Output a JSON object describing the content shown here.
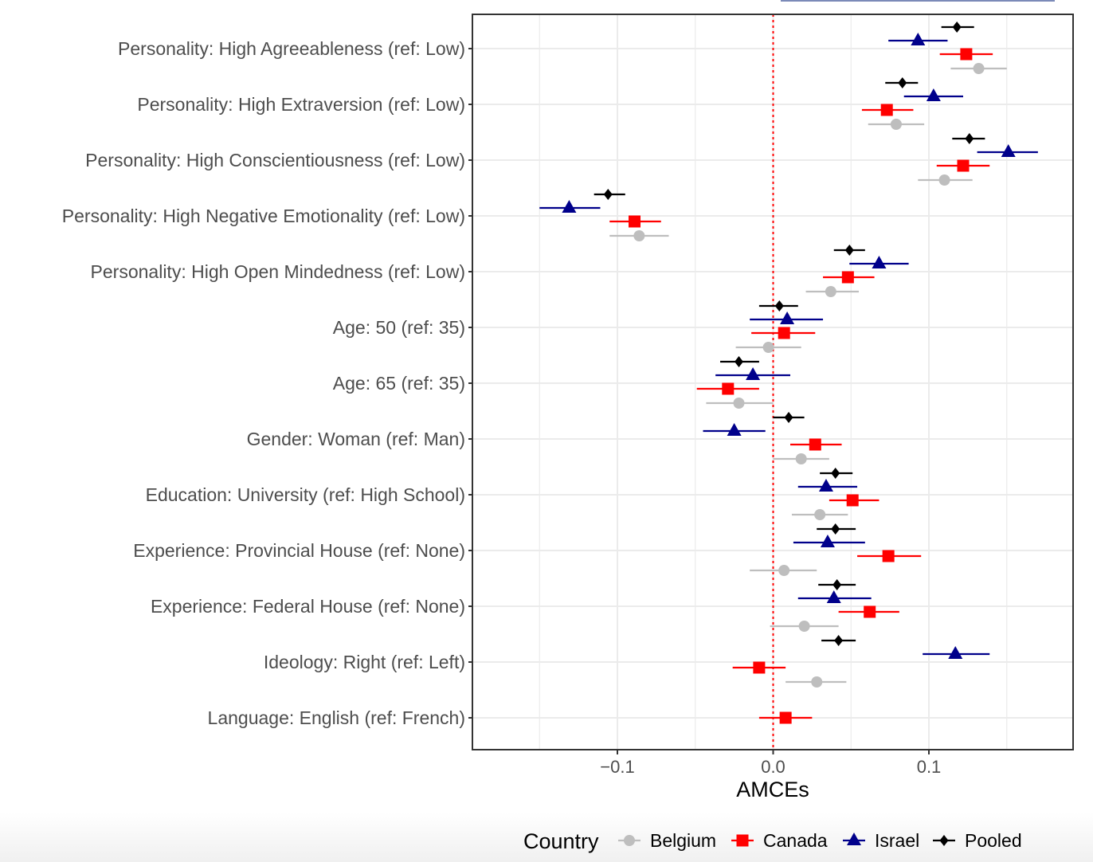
{
  "chart_data": {
    "type": "scatter",
    "subtype": "coefficient-plot-with-error-bars",
    "title": "",
    "xlabel": "AMCEs",
    "ylabel": "",
    "xlim": [
      -0.193,
      0.192
    ],
    "x_ticks": [
      {
        "value": -0.1,
        "label": "−0.1"
      },
      {
        "value": 0.0,
        "label": "0.0"
      },
      {
        "value": 0.1,
        "label": "0.1"
      }
    ],
    "x_minor_gridlines": [
      -0.15,
      -0.05,
      0.05,
      0.15
    ],
    "reference_line": {
      "value": 0.0,
      "style": "dotted",
      "color": "#ff0000"
    },
    "grid": true,
    "legend": {
      "title": "Country",
      "position": "bottom",
      "entries": [
        {
          "name": "Belgium",
          "color": "#bebebe",
          "shape": "circle"
        },
        {
          "name": "Canada",
          "color": "#ff0000",
          "shape": "square"
        },
        {
          "name": "Israel",
          "color": "#00008b",
          "shape": "triangle"
        },
        {
          "name": "Pooled",
          "color": "#000000",
          "shape": "diamond"
        }
      ]
    },
    "series_order": [
      "Pooled",
      "Israel",
      "Canada",
      "Belgium"
    ],
    "categories": [
      "Personality: High Agreeableness (ref: Low)",
      "Personality: High Extraversion (ref: Low)",
      "Personality: High Conscientiousness (ref: Low)",
      "Personality: High Negative Emotionality (ref: Low)",
      "Personality: High Open Mindedness (ref: Low)",
      "Age: 50 (ref: 35)",
      "Age: 65 (ref: 35)",
      "Gender: Woman (ref: Man)",
      "Education: University (ref: High School)",
      "Experience: Provincial House (ref: None)",
      "Experience: Federal House (ref: None)",
      "Ideology: Right (ref: Left)",
      "Language: English (ref: French)"
    ],
    "series": [
      {
        "name": "Pooled",
        "values": [
          0.118,
          0.083,
          0.126,
          -0.106,
          0.049,
          0.004,
          -0.022,
          0.01,
          0.04,
          0.04,
          0.041,
          0.042,
          null
        ],
        "ci_low": [
          0.108,
          0.072,
          0.115,
          -0.115,
          0.039,
          -0.009,
          -0.034,
          0.0,
          0.03,
          0.028,
          0.029,
          0.031,
          null
        ],
        "ci_high": [
          0.129,
          0.093,
          0.136,
          -0.095,
          0.059,
          0.016,
          -0.009,
          0.02,
          0.051,
          0.053,
          0.053,
          0.053,
          null
        ]
      },
      {
        "name": "Israel",
        "values": [
          0.093,
          0.103,
          0.151,
          -0.131,
          0.068,
          0.009,
          -0.013,
          -0.025,
          0.034,
          0.035,
          0.039,
          0.117,
          null
        ],
        "ci_low": [
          0.074,
          0.084,
          0.131,
          -0.15,
          0.049,
          -0.015,
          -0.037,
          -0.045,
          0.016,
          0.013,
          0.016,
          0.096,
          null
        ],
        "ci_high": [
          0.112,
          0.122,
          0.17,
          -0.111,
          0.087,
          0.032,
          0.011,
          -0.005,
          0.054,
          0.059,
          0.063,
          0.139,
          null
        ]
      },
      {
        "name": "Canada",
        "values": [
          0.124,
          0.073,
          0.122,
          -0.089,
          0.048,
          0.007,
          -0.029,
          0.027,
          0.051,
          0.074,
          0.062,
          -0.009,
          0.008
        ],
        "ci_low": [
          0.107,
          0.057,
          0.105,
          -0.105,
          0.032,
          -0.014,
          -0.049,
          0.011,
          0.036,
          0.054,
          0.042,
          -0.026,
          -0.009
        ],
        "ci_high": [
          0.141,
          0.09,
          0.139,
          -0.072,
          0.065,
          0.027,
          -0.009,
          0.044,
          0.068,
          0.095,
          0.081,
          0.008,
          0.025
        ]
      },
      {
        "name": "Belgium",
        "values": [
          0.132,
          0.079,
          0.11,
          -0.086,
          0.037,
          -0.003,
          -0.022,
          0.018,
          0.03,
          0.007,
          0.02,
          0.028,
          null
        ],
        "ci_low": [
          0.114,
          0.061,
          0.093,
          -0.105,
          0.021,
          -0.024,
          -0.043,
          0.0,
          0.012,
          -0.015,
          -0.002,
          0.008,
          null
        ],
        "ci_high": [
          0.15,
          0.097,
          0.128,
          -0.067,
          0.055,
          0.018,
          0.0,
          0.036,
          0.048,
          0.028,
          0.042,
          0.047,
          null
        ]
      }
    ]
  }
}
